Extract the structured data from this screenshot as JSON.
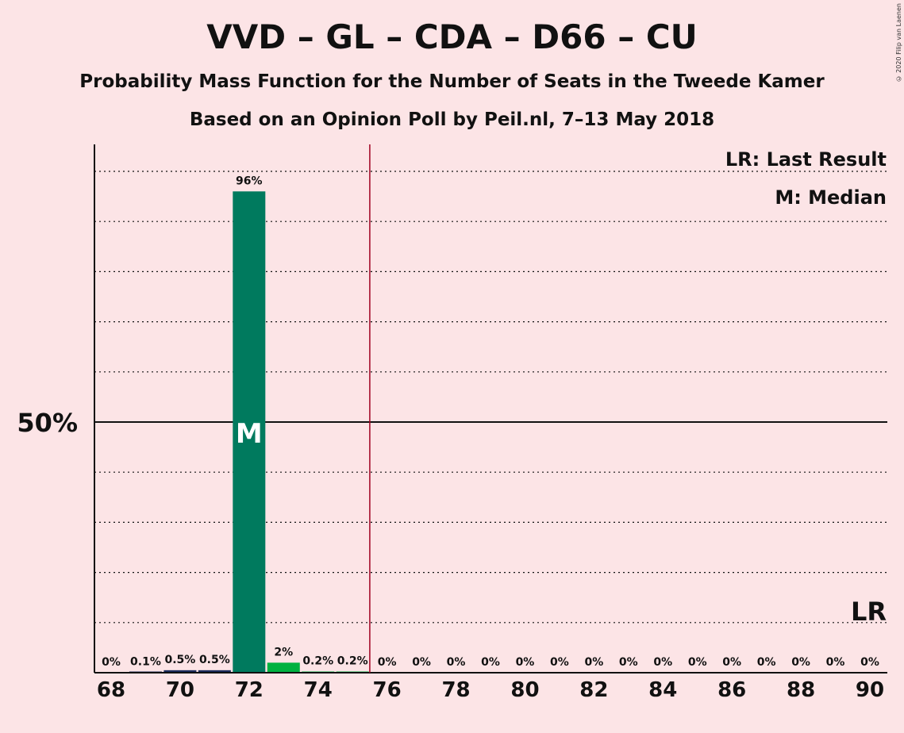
{
  "header": {
    "title": "VVD – GL – CDA – D66 – CU",
    "subtitle": "Probability Mass Function for the Number of Seats in the Tweede Kamer",
    "source": "Based on an Opinion Poll by Peil.nl, 7–13 May 2018",
    "copyright": "© 2020 Filip van Laenen"
  },
  "legend": {
    "last_result": "LR: Last Result",
    "median": "M: Median"
  },
  "colors": {
    "background": "#fce4e6",
    "median_bar": "#007a5e",
    "bar_green": "#00b140",
    "majority_line": "#a00020"
  },
  "chart_data": {
    "type": "bar",
    "title": "VVD – GL – CDA – D66 – CU",
    "x": [
      68,
      69,
      70,
      71,
      72,
      73,
      74,
      75,
      76,
      77,
      78,
      79,
      80,
      81,
      82,
      83,
      84,
      85,
      86,
      87,
      88,
      89,
      90
    ],
    "values": [
      0,
      0.1,
      0.5,
      0.5,
      96,
      2,
      0.2,
      0.2,
      0,
      0,
      0,
      0,
      0,
      0,
      0,
      0,
      0,
      0,
      0,
      0,
      0,
      0,
      0
    ],
    "value_labels": [
      "0%",
      "0.1%",
      "0.5%",
      "0.5%",
      "96%",
      "2%",
      "0.2%",
      "0.2%",
      "0%",
      "0%",
      "0%",
      "0%",
      "0%",
      "0%",
      "0%",
      "0%",
      "0%",
      "0%",
      "0%",
      "0%",
      "0%",
      "0%",
      "0%"
    ],
    "x_tick_labels": [
      "68",
      "70",
      "72",
      "74",
      "76",
      "78",
      "80",
      "82",
      "84",
      "86",
      "88",
      "90"
    ],
    "y_tick_label": "50%",
    "ylim": [
      0,
      105
    ],
    "median": 72,
    "median_marker": "M",
    "last_result_marker": "LR",
    "last_result_seats": 90,
    "majority_threshold": 75.5,
    "grid": true,
    "legend_position": "top-right"
  }
}
